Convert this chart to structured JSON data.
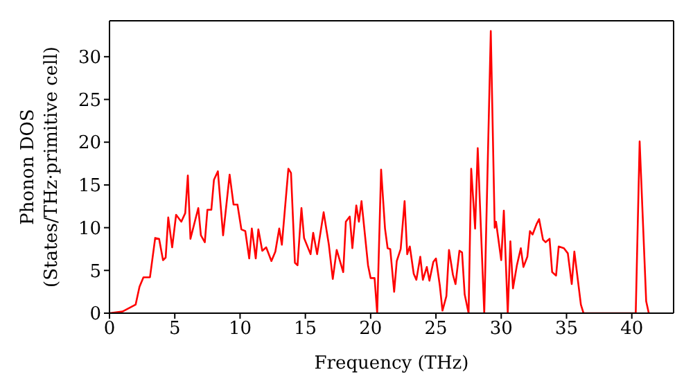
{
  "chart_data": {
    "type": "line",
    "xlabel": "Frequency (THz)",
    "ylabel": "Phonon DOS\n(States/THz·primitive cell)",
    "xlim": [
      0,
      43.2
    ],
    "ylim": [
      0,
      34.2
    ],
    "xticks": [
      0,
      5,
      10,
      15,
      20,
      25,
      30,
      35,
      40
    ],
    "yticks": [
      0,
      5,
      10,
      15,
      20,
      25,
      30
    ],
    "grid": false,
    "marker": "none",
    "line_style": "solid",
    "series": [
      {
        "color": "#ff0000",
        "x": [
          0,
          1.0,
          2.0,
          2.3,
          2.6,
          3.1,
          3.5,
          3.8,
          4.1,
          4.3,
          4.5,
          4.8,
          5.1,
          5.5,
          5.8,
          6.0,
          6.2,
          6.8,
          7.0,
          7.3,
          7.5,
          7.8,
          8.0,
          8.3,
          8.7,
          9.2,
          9.5,
          9.8,
          10.1,
          10.4,
          10.7,
          10.9,
          11.2,
          11.4,
          11.7,
          12.0,
          12.4,
          12.7,
          13.0,
          13.2,
          13.7,
          13.9,
          14.2,
          14.4,
          14.7,
          14.9,
          15.4,
          15.6,
          15.9,
          16.4,
          16.8,
          17.1,
          17.4,
          17.9,
          18.1,
          18.4,
          18.6,
          18.9,
          19.1,
          19.3,
          19.8,
          20.0,
          20.3,
          20.5,
          20.8,
          21.1,
          21.3,
          21.5,
          21.8,
          22.0,
          22.3,
          22.6,
          22.8,
          23.0,
          23.3,
          23.5,
          23.8,
          24.0,
          24.3,
          24.5,
          24.8,
          25.0,
          25.3,
          25.5,
          25.8,
          26.0,
          26.3,
          26.5,
          26.8,
          27.0,
          27.2,
          27.5,
          27.7,
          28.0,
          28.2,
          28.7,
          29.2,
          29.5,
          29.6,
          30.0,
          30.2,
          30.5,
          30.7,
          30.9,
          31.2,
          31.5,
          31.7,
          32.0,
          32.2,
          32.4,
          32.7,
          32.9,
          33.2,
          33.4,
          33.7,
          33.9,
          34.2,
          34.4,
          34.8,
          35.1,
          35.4,
          35.6,
          36.1,
          36.3,
          40.3,
          40.6,
          41.1,
          41.3
        ],
        "values": [
          0,
          0.2,
          1.0,
          3.1,
          4.2,
          4.2,
          8.8,
          8.7,
          6.2,
          6.5,
          11.2,
          7.7,
          11.5,
          10.7,
          11.7,
          16.1,
          8.7,
          12.3,
          9.1,
          8.3,
          12.1,
          12.1,
          15.6,
          16.6,
          9.1,
          16.2,
          12.7,
          12.7,
          9.8,
          9.6,
          6.4,
          9.9,
          6.4,
          9.8,
          7.3,
          7.7,
          6.1,
          7.2,
          9.9,
          8.0,
          16.9,
          16.4,
          5.9,
          5.6,
          12.3,
          8.8,
          6.9,
          9.4,
          6.9,
          11.8,
          8.0,
          4.0,
          7.4,
          4.8,
          10.7,
          11.3,
          7.6,
          12.6,
          10.7,
          13.1,
          5.6,
          4.1,
          4.1,
          0,
          16.8,
          9.9,
          7.6,
          7.5,
          2.5,
          6.1,
          7.5,
          13.1,
          6.9,
          7.8,
          4.6,
          3.9,
          6.6,
          3.9,
          5.4,
          3.8,
          6.0,
          6.4,
          3.2,
          0.3,
          2.0,
          7.4,
          4.5,
          3.4,
          7.3,
          7.1,
          2.2,
          0,
          16.9,
          9.9,
          19.3,
          0,
          33,
          10,
          10.7,
          6.2,
          12,
          0,
          8.4,
          2.9,
          5.6,
          7.6,
          5.4,
          6.6,
          9.6,
          9.2,
          10.4,
          11,
          8.6,
          8.3,
          8.7,
          4.8,
          4.4,
          7.8,
          7.6,
          7.0,
          3.4,
          7.2,
          1,
          0,
          0,
          20.1,
          1.4,
          0
        ]
      }
    ]
  }
}
